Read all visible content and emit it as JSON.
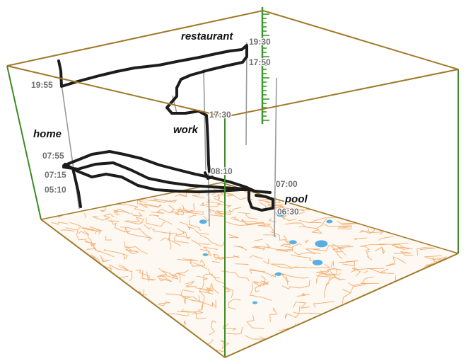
{
  "map": {
    "colors": {
      "frame_edge": "#a07a2a",
      "vertical_edge": "#3e8a2a",
      "street": "#f2a05a",
      "water": "#5aaee6",
      "trajectory": "#1c1c1c",
      "marker_line": "#9a9a9a",
      "time_axis": "#3a9a2a"
    },
    "places": [
      {
        "key": "restaurant",
        "label": "restaurant"
      },
      {
        "key": "home",
        "label": "home"
      },
      {
        "key": "work",
        "label": "work"
      },
      {
        "key": "pool",
        "label": "pool"
      }
    ],
    "times": [
      "19:30",
      "17:50",
      "19:55",
      "17:30",
      "07:55",
      "07:15",
      "05:10",
      "08:10",
      "07:00",
      "06:30"
    ]
  }
}
